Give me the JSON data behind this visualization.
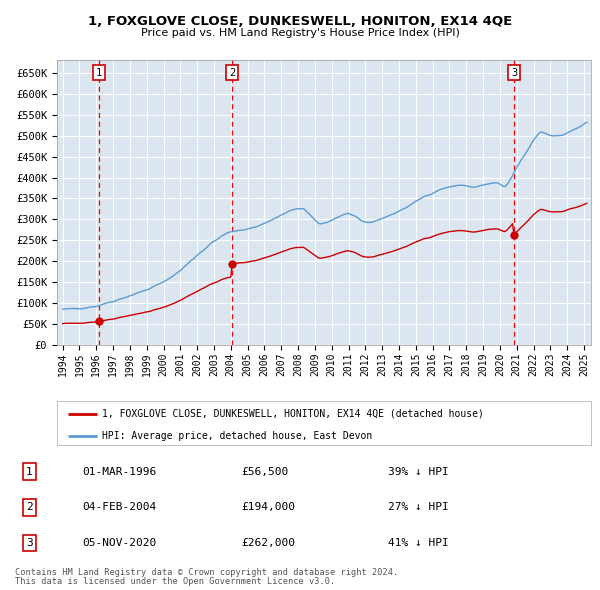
{
  "title1": "1, FOXGLOVE CLOSE, DUNKESWELL, HONITON, EX14 4QE",
  "title2": "Price paid vs. HM Land Registry's House Price Index (HPI)",
  "legend_line1": "1, FOXGLOVE CLOSE, DUNKESWELL, HONITON, EX14 4QE (detached house)",
  "legend_line2": "HPI: Average price, detached house, East Devon",
  "footnote1": "Contains HM Land Registry data © Crown copyright and database right 2024.",
  "footnote2": "This data is licensed under the Open Government Licence v3.0.",
  "sale1_date": "01-MAR-1996",
  "sale1_price": 56500,
  "sale1_pct": "39% ↓ HPI",
  "sale2_date": "04-FEB-2004",
  "sale2_price": 194000,
  "sale2_pct": "27% ↓ HPI",
  "sale3_date": "05-NOV-2020",
  "sale3_price": 262000,
  "sale3_pct": "41% ↓ HPI",
  "hpi_color": "#5b9bd5",
  "price_color": "#cc0000",
  "background_color": "#dce6f1",
  "grid_color": "#ffffff",
  "dashed_line_color": "#ff0000",
  "ylim": [
    0,
    680000
  ],
  "yticks": [
    0,
    50000,
    100000,
    150000,
    200000,
    250000,
    300000,
    350000,
    400000,
    450000,
    500000,
    550000,
    600000,
    650000
  ],
  "ytick_labels": [
    "£0",
    "£50K",
    "£100K",
    "£150K",
    "£200K",
    "£250K",
    "£300K",
    "£350K",
    "£400K",
    "£450K",
    "£500K",
    "£550K",
    "£600K",
    "£650K"
  ]
}
